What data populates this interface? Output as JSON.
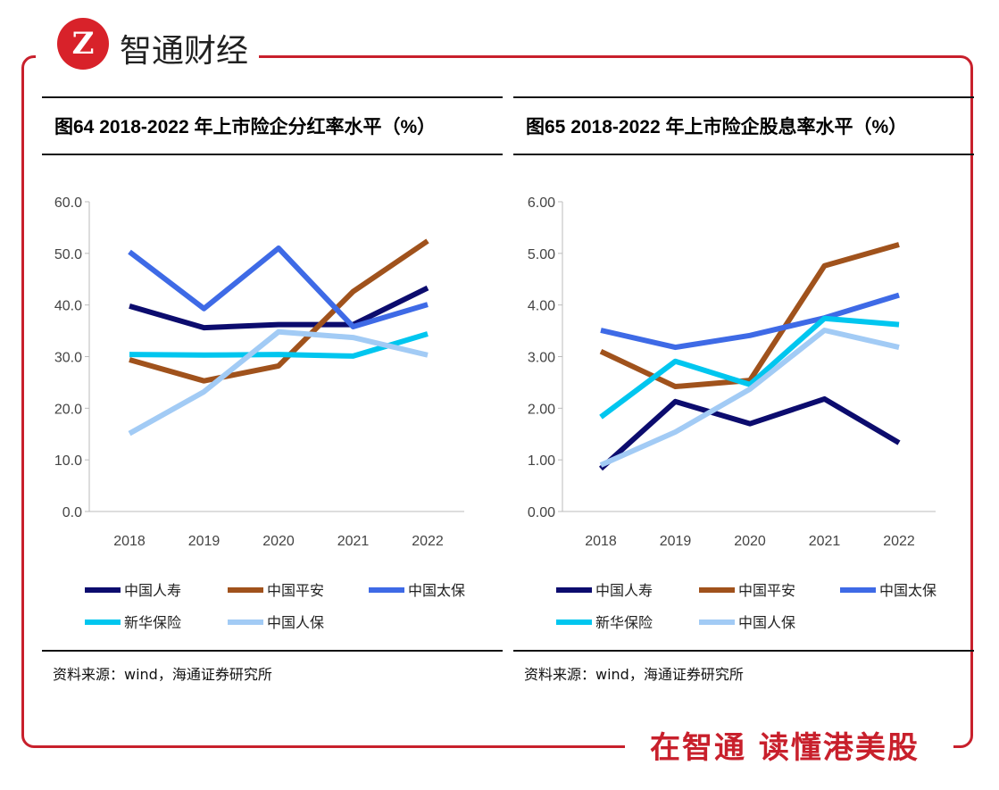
{
  "brand": {
    "logo_letter": "Z",
    "name": "智通财经",
    "tagline": "在智通  读懂港美股"
  },
  "colors": {
    "中国人寿": "#0c0c6e",
    "中国平安": "#a0521c",
    "中国太保": "#3e6ae6",
    "新华保险": "#00c6ef",
    "中国人保": "#a2cbf5",
    "frame": "#c8202c"
  },
  "chart_data": [
    {
      "type": "line",
      "title": "图64 2018-2022 年上市险企分红率水平（%）",
      "categories": [
        "2018",
        "2019",
        "2020",
        "2021",
        "2022"
      ],
      "ylim": [
        0,
        60
      ],
      "yticks": [
        "0.0",
        "10.0",
        "20.0",
        "30.0",
        "40.0",
        "50.0",
        "60.0"
      ],
      "legend": "bottom",
      "grid": false,
      "series": [
        {
          "name": "中国人寿",
          "values": [
            39.8,
            35.6,
            36.2,
            36.2,
            43.3
          ]
        },
        {
          "name": "中国平安",
          "values": [
            29.4,
            25.3,
            28.2,
            42.6,
            52.4
          ]
        },
        {
          "name": "中国太保",
          "values": [
            50.3,
            39.3,
            51.0,
            35.8,
            40.1
          ]
        },
        {
          "name": "新华保险",
          "values": [
            30.4,
            30.3,
            30.4,
            30.1,
            34.4
          ]
        },
        {
          "name": "中国人保",
          "values": [
            15.1,
            23.2,
            34.8,
            33.7,
            30.3
          ]
        }
      ],
      "source": "资料来源：wind，海通证券研究所"
    },
    {
      "type": "line",
      "title": "图65 2018-2022 年上市险企股息率水平（%）",
      "categories": [
        "2018",
        "2019",
        "2020",
        "2021",
        "2022"
      ],
      "ylim": [
        0,
        6
      ],
      "yticks": [
        "0.00",
        "1.00",
        "2.00",
        "3.00",
        "4.00",
        "5.00",
        "6.00"
      ],
      "legend": "bottom",
      "grid": false,
      "series": [
        {
          "name": "中国人寿",
          "values": [
            0.83,
            2.13,
            1.7,
            2.18,
            1.33
          ]
        },
        {
          "name": "中国平安",
          "values": [
            3.1,
            2.42,
            2.54,
            4.76,
            5.17
          ]
        },
        {
          "name": "中国太保",
          "values": [
            3.51,
            3.18,
            3.41,
            3.75,
            4.19
          ]
        },
        {
          "name": "新华保险",
          "values": [
            1.83,
            2.91,
            2.46,
            3.74,
            3.62
          ]
        },
        {
          "name": "中国人保",
          "values": [
            0.9,
            1.54,
            2.37,
            3.51,
            3.18
          ]
        }
      ],
      "source": "资料来源：wind，海通证券研究所"
    }
  ]
}
